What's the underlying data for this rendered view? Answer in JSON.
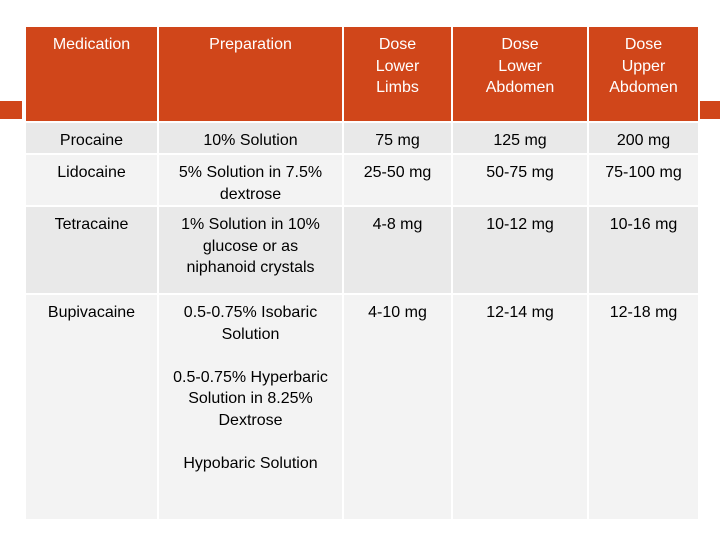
{
  "table": {
    "headers": [
      "Medication",
      "Preparation",
      "Dose Lower Limbs",
      "Dose Lower Abdomen",
      "Dose Upper Abdomen"
    ],
    "rows": [
      [
        "Procaine",
        "10% Solution",
        "75 mg",
        "125 mg",
        "200 mg"
      ],
      [
        "Lidocaine",
        "5% Solution in 7.5% dextrose",
        "25-50 mg",
        "50-75 mg",
        "75-100 mg"
      ],
      [
        "Tetracaine",
        "1% Solution in 10% glucose or as niphanoid crystals",
        "4-8 mg",
        "10-12 mg",
        "10-16 mg"
      ],
      [
        "Bupivacaine",
        [
          "0.5-0.75% Isobaric Solution",
          "0.5-0.75% Hyperbaric Solution in 8.25% Dextrose",
          "Hypobaric Solution"
        ],
        "4-10 mg",
        "12-14 mg",
        "12-18 mg"
      ]
    ]
  }
}
